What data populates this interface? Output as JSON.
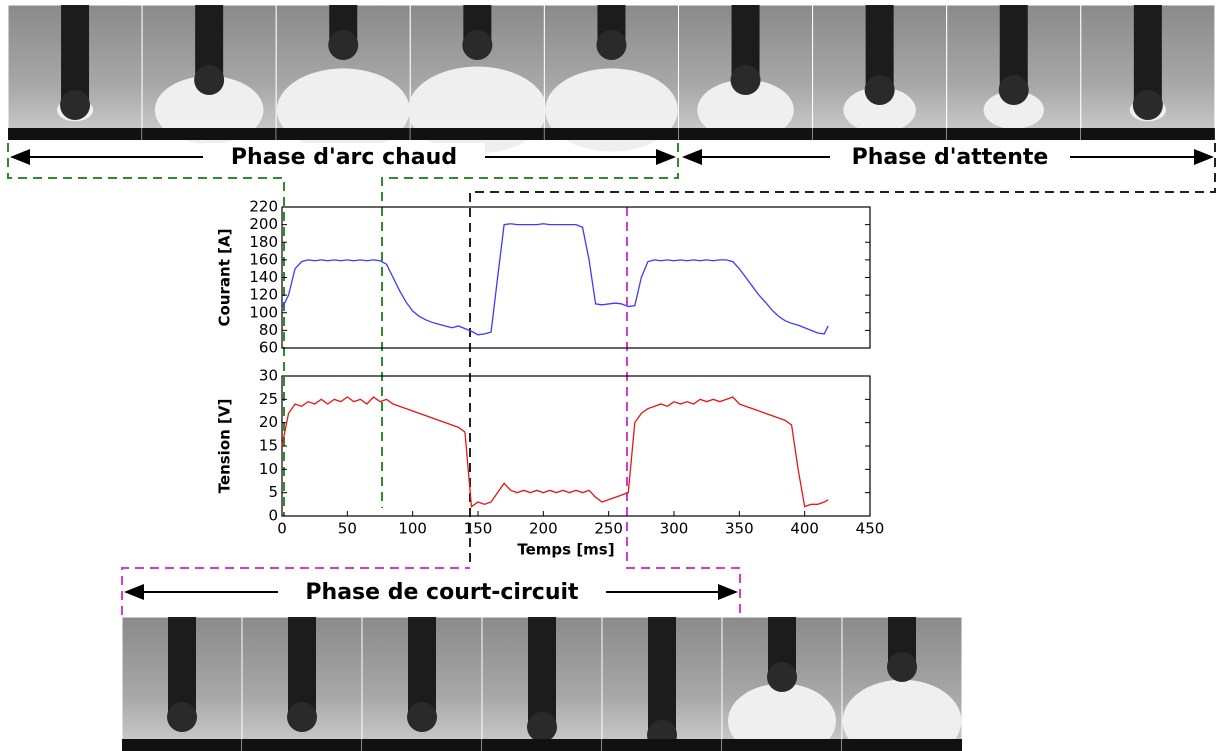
{
  "phases": {
    "arc": "Phase d'arc chaud",
    "attente": "Phase d'attente",
    "court_circuit": "Phase de court-circuit"
  },
  "chart_data": [
    {
      "type": "line",
      "ylabel": "Courant [A]",
      "color": "#3b3bff",
      "x": [
        0,
        5,
        10,
        15,
        20,
        25,
        30,
        35,
        40,
        45,
        50,
        55,
        60,
        65,
        70,
        75,
        80,
        85,
        90,
        95,
        100,
        105,
        110,
        115,
        120,
        125,
        130,
        135,
        140,
        145,
        150,
        155,
        160,
        165,
        170,
        175,
        180,
        185,
        190,
        195,
        200,
        205,
        210,
        215,
        220,
        225,
        230,
        235,
        240,
        245,
        250,
        255,
        260,
        265,
        270,
        275,
        280,
        285,
        290,
        295,
        300,
        305,
        310,
        315,
        320,
        325,
        330,
        335,
        340,
        345,
        350,
        355,
        360,
        365,
        370,
        375,
        380,
        385,
        390,
        395,
        400,
        405,
        410,
        415,
        418
      ],
      "values": [
        105,
        120,
        150,
        158,
        160,
        159,
        160,
        159,
        160,
        159,
        160,
        159,
        160,
        159,
        160,
        159,
        155,
        140,
        125,
        112,
        102,
        96,
        92,
        89,
        87,
        85,
        83,
        85,
        82,
        79,
        75,
        76,
        78,
        140,
        200,
        201,
        200,
        200,
        200,
        200,
        201,
        200,
        200,
        200,
        200,
        200,
        197,
        160,
        110,
        109,
        110,
        111,
        110,
        107,
        108,
        140,
        158,
        160,
        159,
        160,
        159,
        160,
        159,
        160,
        159,
        160,
        159,
        160,
        160,
        158,
        150,
        140,
        130,
        120,
        112,
        103,
        96,
        91,
        88,
        86,
        83,
        80,
        77,
        76,
        85
      ],
      "xlim": [
        0,
        450
      ],
      "ylim": [
        60,
        220
      ],
      "yticks": [
        60,
        80,
        100,
        120,
        140,
        160,
        180,
        200,
        220
      ]
    },
    {
      "type": "line",
      "ylabel": "Tension [V]",
      "xlabel": "Temps [ms]",
      "color": "#e81414",
      "x": [
        0,
        5,
        10,
        15,
        20,
        25,
        30,
        35,
        40,
        45,
        50,
        55,
        60,
        65,
        70,
        75,
        80,
        85,
        90,
        95,
        100,
        105,
        110,
        115,
        120,
        125,
        130,
        135,
        140,
        145,
        150,
        155,
        160,
        165,
        170,
        175,
        180,
        185,
        190,
        195,
        200,
        205,
        210,
        215,
        220,
        225,
        230,
        235,
        240,
        245,
        250,
        255,
        260,
        265,
        270,
        275,
        280,
        285,
        290,
        295,
        300,
        305,
        310,
        315,
        320,
        325,
        330,
        335,
        340,
        345,
        350,
        355,
        360,
        365,
        370,
        375,
        380,
        385,
        390,
        395,
        400,
        405,
        410,
        415,
        418
      ],
      "values": [
        15,
        22,
        24,
        23.5,
        24.5,
        24,
        25,
        24,
        25,
        24.5,
        25.5,
        24.5,
        25,
        24,
        25.5,
        24.5,
        25,
        24,
        23.5,
        23,
        22.5,
        22,
        21.5,
        21,
        20.5,
        20,
        19.5,
        19,
        18,
        2,
        3,
        2.5,
        3,
        5,
        7,
        5.5,
        5,
        5.5,
        5,
        5.5,
        5,
        5.5,
        5,
        5.5,
        5,
        5.5,
        5,
        5.5,
        4,
        3,
        3.5,
        4,
        4.5,
        5,
        20,
        22,
        23,
        23.5,
        24,
        23.5,
        24.5,
        24,
        24.5,
        24,
        25,
        24.5,
        25,
        24.5,
        25,
        25.5,
        24,
        23.5,
        23,
        22.5,
        22,
        21.5,
        21,
        20.5,
        19.5,
        10,
        2,
        2.5,
        2.5,
        3,
        3.5
      ],
      "xlim": [
        0,
        450
      ],
      "ylim": [
        0,
        30
      ],
      "yticks": [
        0,
        5,
        10,
        15,
        20,
        25,
        30
      ],
      "xticks": [
        0,
        50,
        100,
        150,
        200,
        250,
        300,
        350,
        400,
        450
      ]
    }
  ]
}
